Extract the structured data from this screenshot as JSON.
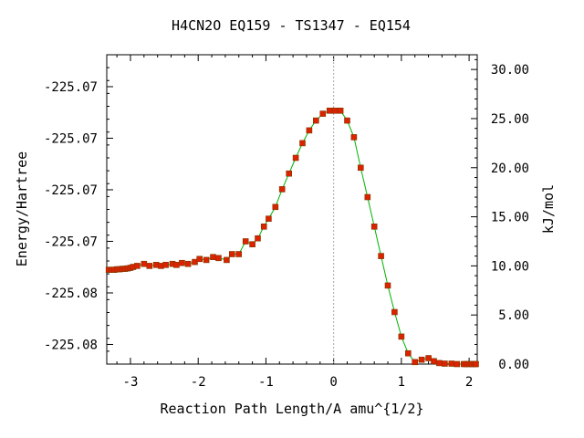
{
  "chart_data": {
    "type": "line",
    "title": "H4CN2O   EQ159 - TS1347 - EQ154",
    "xlabel": "Reaction Path Length/A amu^{1/2}",
    "ylabel_left": "Energy/Hartree",
    "ylabel_right": "kJ/mol",
    "xlim": [
      -3.35,
      2.12
    ],
    "ylim_kj": [
      0,
      31.5
    ],
    "x_ticks": [
      {
        "value": -3,
        "label": "-3"
      },
      {
        "value": -2,
        "label": "-2"
      },
      {
        "value": -1,
        "label": "-1"
      },
      {
        "value": 0,
        "label": "0"
      },
      {
        "value": 1,
        "label": "1"
      },
      {
        "value": 2,
        "label": "2"
      }
    ],
    "left_ticks": [
      {
        "kj": 28.25,
        "label": "-225.07"
      },
      {
        "kj": 23.0,
        "label": "-225.07"
      },
      {
        "kj": 17.75,
        "label": "-225.07"
      },
      {
        "kj": 12.5,
        "label": "-225.07"
      },
      {
        "kj": 7.25,
        "label": "-225.08"
      },
      {
        "kj": 2.0,
        "label": "-225.08"
      }
    ],
    "right_ticks": [
      {
        "value": 0,
        "label": "0.00"
      },
      {
        "value": 5,
        "label": "5.00"
      },
      {
        "value": 10,
        "label": "10.00"
      },
      {
        "value": 15,
        "label": "15.00"
      },
      {
        "value": 20,
        "label": "20.00"
      },
      {
        "value": 25,
        "label": "25.00"
      },
      {
        "value": 30,
        "label": "30.00"
      }
    ],
    "ts_marker_x": 0,
    "line_color": "#00b000",
    "marker_color": "#dd2200",
    "series": [
      {
        "x": [
          -3.32,
          -3.28,
          -3.24,
          -3.2,
          -3.16,
          -3.12,
          -3.08,
          -3.04,
          -3.0,
          -2.96,
          -2.9,
          -2.8,
          -2.72,
          -2.62,
          -2.55,
          -2.48,
          -2.38,
          -2.32,
          -2.24,
          -2.15,
          -2.05,
          -1.98,
          -1.88,
          -1.78,
          -1.7,
          -1.58,
          -1.5,
          -1.4,
          -1.3,
          -1.2,
          -1.12,
          -1.03,
          -0.96,
          -0.86,
          -0.76,
          -0.66,
          -0.56,
          -0.46,
          -0.36,
          -0.26,
          -0.16,
          -0.06,
          0.02,
          0.1,
          0.2,
          0.3,
          0.4,
          0.5,
          0.6,
          0.7,
          0.8,
          0.9,
          1.0,
          1.1,
          1.2,
          1.3,
          1.4,
          1.48,
          1.56,
          1.64,
          1.74,
          1.82,
          1.92,
          1.96,
          2.0,
          2.04,
          2.08,
          2.1
        ],
        "y": [
          9.6,
          9.6,
          9.6,
          9.65,
          9.65,
          9.7,
          9.7,
          9.75,
          9.8,
          9.9,
          10.0,
          10.2,
          10.0,
          10.1,
          10.0,
          10.1,
          10.2,
          10.1,
          10.3,
          10.2,
          10.4,
          10.7,
          10.6,
          10.9,
          10.8,
          10.6,
          11.2,
          11.2,
          12.5,
          12.2,
          12.8,
          14.0,
          14.8,
          16.0,
          17.8,
          19.4,
          21.0,
          22.5,
          23.8,
          24.8,
          25.5,
          25.8,
          25.8,
          25.8,
          24.8,
          23.1,
          20.0,
          17.0,
          14.0,
          11.0,
          8.0,
          5.3,
          2.8,
          1.1,
          0.2,
          0.45,
          0.6,
          0.3,
          0.1,
          0.05,
          0.05,
          0.0,
          0.0,
          0.0,
          0.0,
          0.0,
          0.0,
          0.0
        ]
      }
    ]
  }
}
